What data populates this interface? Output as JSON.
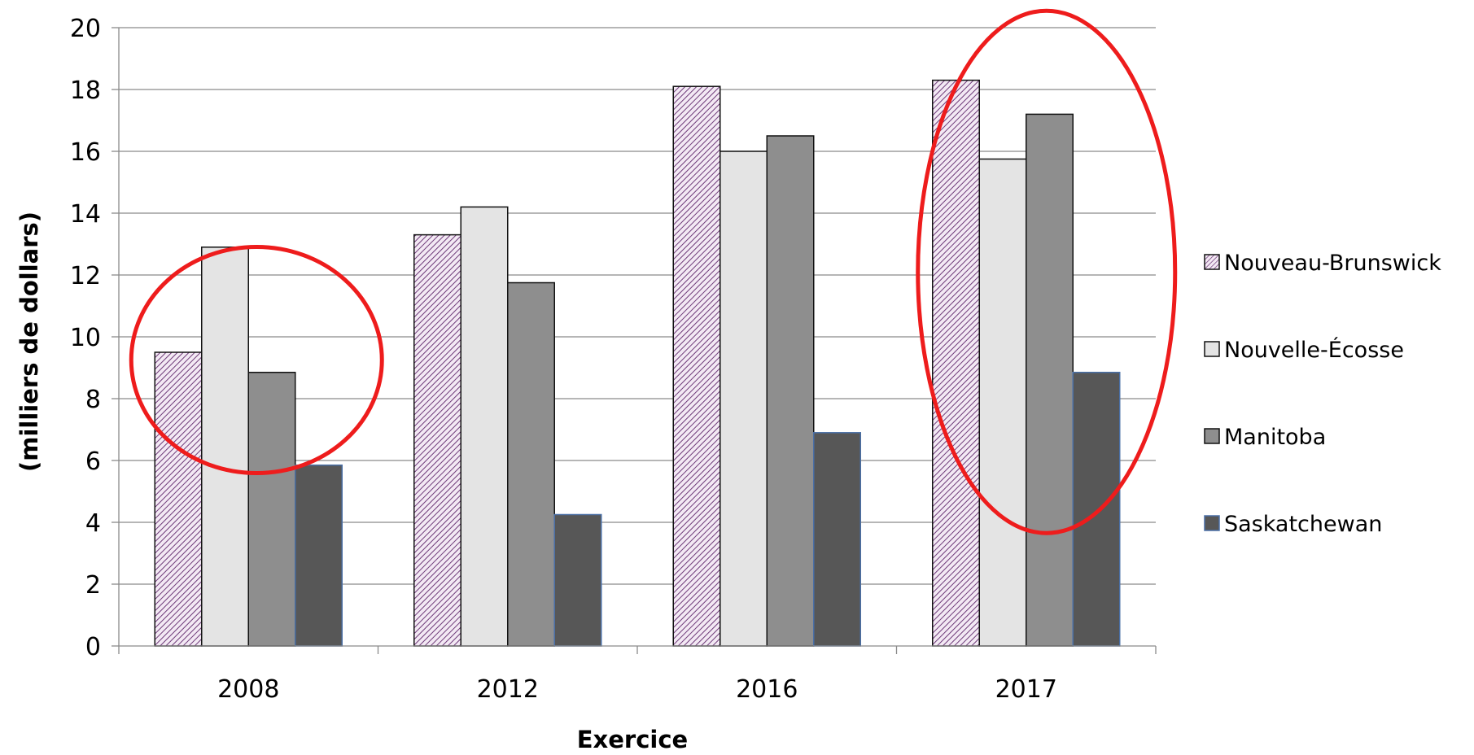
{
  "chart_data": {
    "type": "bar",
    "title": "",
    "xlabel": "Exercice",
    "ylabel": "(milliers de dollars)",
    "ylim": [
      0,
      20
    ],
    "yticks": [
      0,
      2,
      4,
      6,
      8,
      10,
      12,
      14,
      16,
      18,
      20
    ],
    "categories": [
      "2008",
      "2012",
      "2016",
      "2017"
    ],
    "grid": true,
    "legend": "right",
    "series": [
      {
        "name": "Nouveau-Brunswick",
        "values": [
          9.5,
          13.3,
          18.1,
          18.3
        ],
        "color": "#e8d6ec",
        "pattern": "diagonal-hatch-purple"
      },
      {
        "name": "Nouvelle-Écosse",
        "values": [
          12.9,
          14.2,
          16.0,
          15.75
        ],
        "color": "#e4e4e4"
      },
      {
        "name": "Manitoba",
        "values": [
          8.85,
          11.75,
          16.5,
          17.2
        ],
        "color": "#8e8e8e"
      },
      {
        "name": "Saskatchewan",
        "values": [
          5.85,
          4.25,
          6.9,
          8.85
        ],
        "color": "#575757",
        "stroke": "#4a6fa5"
      }
    ],
    "annotations": [
      {
        "type": "ellipse",
        "around": "2008",
        "color": "#ee1c1c"
      },
      {
        "type": "ellipse",
        "around": "2017",
        "color": "#ee1c1c"
      }
    ]
  }
}
